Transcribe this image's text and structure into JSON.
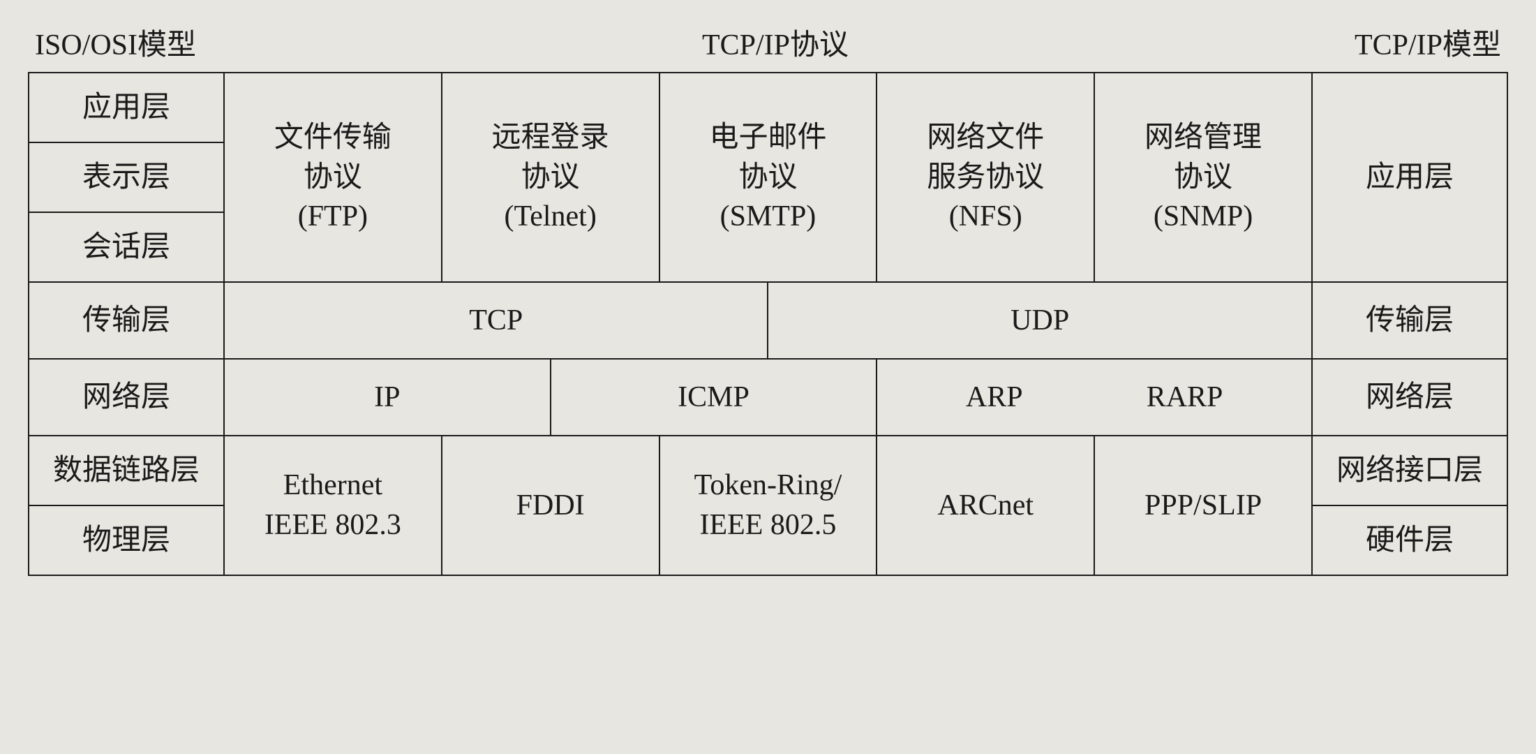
{
  "headers": {
    "left": "ISO/OSI模型",
    "center": "TCP/IP协议",
    "right": "TCP/IP模型"
  },
  "osi": {
    "application": "应用层",
    "presentation": "表示层",
    "session": "会话层",
    "transport": "传输层",
    "network": "网络层",
    "datalink": "数据链路层",
    "physical": "物理层"
  },
  "tcpip": {
    "application": "应用层",
    "transport": "传输层",
    "network": "网络层",
    "netif": "网络接口层",
    "hardware": "硬件层"
  },
  "protocols": {
    "app": {
      "ftp": "文件传输\n协议\n(FTP)",
      "telnet": "远程登录\n协议\n(Telnet)",
      "smtp": "电子邮件\n协议\n(SMTP)",
      "nfs": "网络文件\n服务协议\n(NFS)",
      "snmp": "网络管理\n协议\n(SNMP)"
    },
    "transport": {
      "tcp": "TCP",
      "udp": "UDP"
    },
    "network": {
      "ip": "IP",
      "icmp": "ICMP",
      "arp": "ARP",
      "rarp": "RARP"
    },
    "link": {
      "ethernet": "Ethernet\nIEEE 802.3",
      "fddi": "FDDI",
      "tokenring": "Token-Ring/\nIEEE 802.5",
      "arcnet": "ARCnet",
      "pppslip": "PPP/SLIP"
    }
  },
  "style": {
    "background_color": "#e8e6e0",
    "border_color": "#1a1a1a",
    "text_color": "#1a1a1a",
    "font_size_header": 42,
    "font_size_cell": 42,
    "border_width": 2
  }
}
